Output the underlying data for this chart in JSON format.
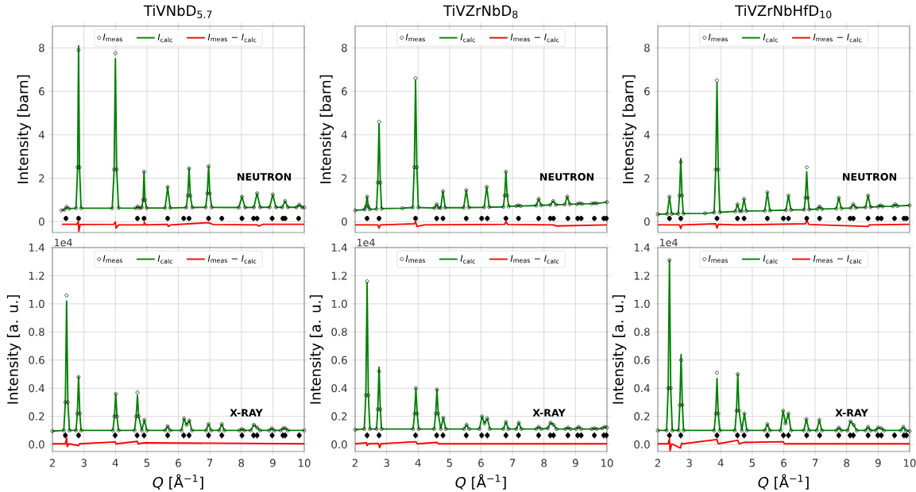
{
  "chart_data": [
    {
      "type": "line",
      "title": "TiVNbD$_{5.7}$",
      "ylabel": "Intensity [barn]",
      "xlim": [
        2,
        10
      ],
      "ylim": [
        -0.5,
        9
      ],
      "xticks": [
        2,
        3,
        4,
        5,
        6,
        7,
        8,
        9,
        10
      ],
      "yticks": [
        0,
        2,
        4,
        6,
        8
      ],
      "grid": true,
      "legend": "top",
      "tick_labels": "y",
      "annotations": [
        "NEUTRON"
      ],
      "x": [
        2.28,
        2.38,
        2.45,
        2.52,
        2.75,
        2.8,
        2.83,
        2.86,
        2.91,
        3.9,
        3.96,
        4.0,
        4.04,
        4.1,
        4.65,
        4.71,
        4.77,
        4.84,
        4.88,
        4.91,
        4.94,
        4.99,
        5.58,
        5.66,
        5.74,
        6.25,
        6.3,
        6.34,
        6.38,
        6.44,
        6.87,
        6.92,
        6.96,
        7.0,
        7.06,
        7.92,
        8.02,
        8.12,
        8.4,
        8.5,
        8.6,
        8.9,
        9.0,
        9.1,
        9.3,
        9.39,
        9.48,
        9.75,
        9.84,
        9.93,
        10
      ],
      "series": [
        {
          "name": "*I*$_{meas}$",
          "type": "scatter",
          "marker": "circle",
          "color": "#000000",
          "values": [
            0.52,
            0.55,
            0.68,
            0.6,
            0.62,
            2.5,
            7.9,
            2.5,
            0.62,
            0.62,
            2.4,
            7.75,
            2.4,
            0.63,
            0.62,
            0.7,
            0.62,
            0.65,
            1.0,
            2.3,
            1.0,
            0.63,
            0.63,
            1.6,
            0.63,
            0.65,
            1.2,
            2.45,
            1.2,
            0.65,
            0.66,
            1.3,
            2.55,
            1.3,
            0.66,
            0.65,
            1.15,
            0.65,
            0.66,
            1.3,
            0.66,
            0.66,
            1.25,
            0.66,
            0.66,
            0.95,
            0.66,
            0.66,
            0.78,
            0.66,
            0.65
          ]
        },
        {
          "name": "*I*$_{calc}$",
          "marker": "none",
          "color": "#008000",
          "values": [
            0.52,
            0.55,
            0.68,
            0.6,
            0.62,
            2.5,
            8.1,
            2.5,
            0.62,
            0.62,
            2.4,
            7.5,
            2.4,
            0.63,
            0.62,
            0.7,
            0.62,
            0.65,
            1.0,
            2.3,
            1.0,
            0.63,
            0.63,
            1.6,
            0.63,
            0.65,
            1.2,
            2.45,
            1.2,
            0.65,
            0.66,
            1.3,
            2.55,
            1.3,
            0.66,
            0.65,
            1.15,
            0.65,
            0.66,
            1.3,
            0.66,
            0.66,
            1.25,
            0.66,
            0.66,
            0.95,
            0.66,
            0.66,
            0.78,
            0.66,
            0.65
          ]
        },
        {
          "name": "*I*$_{meas}$ − *I*$_{calc}$",
          "marker": "none",
          "color": "#ff0000",
          "x": [
            2.3,
            2.78,
            2.82,
            2.84,
            2.88,
            3.95,
            4.0,
            4.02,
            4.1,
            4.9,
            4.92,
            4.96,
            5.65,
            5.68,
            5.75,
            6.34,
            6.96,
            7.1,
            8.5,
            8.55,
            8.7,
            10
          ],
          "values": [
            -0.12,
            -0.12,
            0,
            -0.45,
            -0.13,
            -0.12,
            -0.02,
            -0.3,
            -0.15,
            -0.15,
            -0.03,
            -0.15,
            -0.12,
            -0.22,
            -0.15,
            -0.1,
            -0.05,
            -0.13,
            -0.15,
            -0.2,
            -0.12,
            -0.12
          ]
        },
        {
          "type": "scatter",
          "marker": "none",
          "color": "#000000",
          "x": [
            2.43,
            2.83,
            4.7,
            4.91,
            5.66,
            6.17,
            6.34,
            6.96,
            7.38,
            8.02,
            8.39,
            8.5,
            8.98,
            9.32,
            9.39,
            9.82
          ],
          "values": [
            0.15,
            0.15,
            0.15,
            0.15,
            0.15,
            0.15,
            0.15,
            0.15,
            0.15,
            0.15,
            0.15,
            0.15,
            0.15,
            0.15,
            0.15,
            0.15
          ],
          "errors": [
            0.12,
            0.12,
            0.12,
            0.12,
            0.12,
            0.12,
            0.12,
            0.12,
            0.12,
            0.12,
            0.12,
            0.12,
            0.12,
            0.12,
            0.12,
            0.12
          ]
        }
      ]
    },
    {
      "type": "line",
      "title": "TiVZrNbD$_{8}$",
      "ylabel": "Intensity [barn]",
      "xlim": [
        2,
        10
      ],
      "ylim": [
        -0.5,
        9
      ],
      "xticks": [
        2,
        3,
        4,
        5,
        6,
        7,
        8,
        9,
        10
      ],
      "yticks": [
        0,
        2,
        4,
        6,
        8
      ],
      "grid": true,
      "legend": "top",
      "tick_labels": "y",
      "annotations": [
        "NEUTRON"
      ],
      "x": [
        2.0,
        2.3,
        2.34,
        2.38,
        2.42,
        2.46,
        2.68,
        2.72,
        2.76,
        2.8,
        2.84,
        3.5,
        3.83,
        3.88,
        3.92,
        3.96,
        4.01,
        4.52,
        4.59,
        4.65,
        4.72,
        4.79,
        4.86,
        5.45,
        5.53,
        5.61,
        6.1,
        6.18,
        6.26,
        6.71,
        6.75,
        6.79,
        6.83,
        6.88,
        7.12,
        7.19,
        7.26,
        7.75,
        7.83,
        7.91,
        8.2,
        8.29,
        8.38,
        8.66,
        8.74,
        8.82,
        9.05,
        9.13,
        9.21,
        9.52,
        9.6,
        9.68,
        10
      ],
      "series": [
        {
          "name": "*I*$_{meas}$",
          "type": "scatter",
          "marker": "circle",
          "color": "#000000",
          "values": [
            0.52,
            0.56,
            0.7,
            1.15,
            0.7,
            0.57,
            0.58,
            1.8,
            4.6,
            1.8,
            0.6,
            0.62,
            0.65,
            2.5,
            6.6,
            2.5,
            0.65,
            0.63,
            0.8,
            0.63,
            0.63,
            1.4,
            0.64,
            0.64,
            1.45,
            0.65,
            0.66,
            1.6,
            0.67,
            0.68,
            1.2,
            2.3,
            1.2,
            0.7,
            0.72,
            0.75,
            0.72,
            0.74,
            1.05,
            0.75,
            0.77,
            0.95,
            0.78,
            0.79,
            1.15,
            0.8,
            0.81,
            0.85,
            0.82,
            0.83,
            0.85,
            0.84,
            0.9
          ]
        },
        {
          "name": "*I*$_{calc}$",
          "marker": "none",
          "color": "#008000",
          "values": [
            0.52,
            0.56,
            0.7,
            1.15,
            0.7,
            0.57,
            0.58,
            1.8,
            4.5,
            1.8,
            0.6,
            0.62,
            0.65,
            2.5,
            6.5,
            2.5,
            0.65,
            0.63,
            0.8,
            0.63,
            0.63,
            1.4,
            0.64,
            0.64,
            1.45,
            0.65,
            0.66,
            1.6,
            0.67,
            0.68,
            1.2,
            2.3,
            1.2,
            0.7,
            0.72,
            0.75,
            0.72,
            0.74,
            1.05,
            0.75,
            0.77,
            0.95,
            0.78,
            0.79,
            1.15,
            0.8,
            0.81,
            0.85,
            0.82,
            0.83,
            0.85,
            0.84,
            0.9
          ]
        },
        {
          "name": "*I*$_{meas}$ − *I*$_{calc}$",
          "marker": "none",
          "color": "#ff0000",
          "x": [
            2.0,
            2.72,
            2.76,
            2.8,
            3.88,
            3.92,
            3.96,
            4.2,
            6.75,
            6.79,
            6.85,
            8.3,
            8.4,
            10
          ],
          "values": [
            -0.15,
            -0.15,
            -0.3,
            -0.15,
            -0.1,
            0,
            -0.22,
            -0.15,
            -0.12,
            0,
            -0.13,
            -0.15,
            -0.2,
            -0.15
          ]
        },
        {
          "type": "scatter",
          "marker": "none",
          "color": "#000000",
          "x": [
            2.38,
            2.76,
            3.92,
            4.59,
            4.79,
            5.53,
            6.02,
            6.2,
            6.79,
            7.19,
            7.83,
            8.2,
            8.3,
            8.76,
            9.07,
            9.18,
            9.6,
            9.9,
            9.98
          ],
          "values": [
            0.15,
            0.15,
            0.15,
            0.15,
            0.15,
            0.15,
            0.15,
            0.15,
            0.15,
            0.15,
            0.15,
            0.15,
            0.15,
            0.15,
            0.15,
            0.15,
            0.15,
            0.15,
            0.15
          ],
          "errors": [
            0.12,
            0.12,
            0.12,
            0.12,
            0.12,
            0.12,
            0.12,
            0.12,
            0.12,
            0.12,
            0.12,
            0.12,
            0.12,
            0.12,
            0.12,
            0.12,
            0.12,
            0.12,
            0.12
          ]
        }
      ]
    },
    {
      "type": "line",
      "title": "TiVZrNbHfD$_{10}$",
      "ylabel": "Intensity [barn]",
      "xlim": [
        2,
        10
      ],
      "ylim": [
        -0.5,
        9
      ],
      "xticks": [
        2,
        3,
        4,
        5,
        6,
        7,
        8,
        9,
        10
      ],
      "yticks": [
        0,
        2,
        4,
        6,
        8
      ],
      "grid": true,
      "legend": "top",
      "tick_labels": "y",
      "annotations": [
        "NEUTRON"
      ],
      "x": [
        2.0,
        2.3,
        2.37,
        2.44,
        2.65,
        2.69,
        2.73,
        2.77,
        2.81,
        3.5,
        3.79,
        3.84,
        3.88,
        3.92,
        3.97,
        4.46,
        4.53,
        4.6,
        4.67,
        4.74,
        4.81,
        5.4,
        5.48,
        5.56,
        6.07,
        6.15,
        6.23,
        6.65,
        6.69,
        6.73,
        6.77,
        6.81,
        7.07,
        7.14,
        7.21,
        7.67,
        7.75,
        7.83,
        8.13,
        8.21,
        8.29,
        8.6,
        8.68,
        8.76,
        9.0,
        9.07,
        9.14,
        9.47,
        9.54,
        9.61,
        10
      ],
      "series": [
        {
          "name": "*I*$_{meas}$",
          "type": "scatter",
          "marker": "circle",
          "color": "#000000",
          "values": [
            0.34,
            0.36,
            1.15,
            0.36,
            0.36,
            1.2,
            2.75,
            1.2,
            0.37,
            0.38,
            0.42,
            2.4,
            6.5,
            2.4,
            0.43,
            0.47,
            0.8,
            0.48,
            0.48,
            1.05,
            0.49,
            0.5,
            1.35,
            0.51,
            0.53,
            1.2,
            0.54,
            0.55,
            1.1,
            2.5,
            1.1,
            0.56,
            0.58,
            0.7,
            0.58,
            0.6,
            1.1,
            0.61,
            0.63,
            0.8,
            0.64,
            0.66,
            1.2,
            0.67,
            0.69,
            0.75,
            0.7,
            0.71,
            0.8,
            0.72,
            0.75
          ]
        },
        {
          "name": "*I*$_{calc}$",
          "marker": "none",
          "color": "#008000",
          "values": [
            0.34,
            0.36,
            1.15,
            0.36,
            0.36,
            1.2,
            2.9,
            1.2,
            0.37,
            0.38,
            0.42,
            2.4,
            6.4,
            2.4,
            0.43,
            0.47,
            0.8,
            0.48,
            0.48,
            1.05,
            0.49,
            0.5,
            1.35,
            0.51,
            0.53,
            1.2,
            0.54,
            0.55,
            1.1,
            2.3,
            1.1,
            0.56,
            0.58,
            0.7,
            0.58,
            0.6,
            1.1,
            0.61,
            0.63,
            0.8,
            0.64,
            0.66,
            1.2,
            0.67,
            0.69,
            0.75,
            0.7,
            0.71,
            0.8,
            0.72,
            0.75
          ]
        },
        {
          "name": "*I*$_{meas}$ − *I*$_{calc}$",
          "marker": "none",
          "color": "#ff0000",
          "x": [
            2.0,
            2.69,
            2.73,
            2.77,
            3.84,
            3.88,
            3.92,
            4.5,
            6.69,
            6.73,
            6.8,
            8.68,
            8.72,
            10
          ],
          "values": [
            -0.15,
            -0.15,
            -0.32,
            -0.15,
            -0.1,
            -0.3,
            -0.12,
            -0.15,
            -0.1,
            0.05,
            -0.13,
            -0.22,
            -0.15,
            -0.12
          ]
        },
        {
          "type": "scatter",
          "marker": "none",
          "color": "#000000",
          "x": [
            2.37,
            2.73,
            3.88,
            4.53,
            4.74,
            5.48,
            5.99,
            6.15,
            6.73,
            7.14,
            7.75,
            8.11,
            8.21,
            8.68,
            8.99,
            9.1,
            9.52,
            9.82,
            9.9
          ],
          "values": [
            0.15,
            0.15,
            0.15,
            0.15,
            0.15,
            0.15,
            0.15,
            0.15,
            0.15,
            0.15,
            0.15,
            0.15,
            0.15,
            0.15,
            0.15,
            0.15,
            0.15,
            0.15,
            0.15
          ],
          "errors": [
            0.12,
            0.12,
            0.12,
            0.12,
            0.12,
            0.12,
            0.12,
            0.12,
            0.12,
            0.12,
            0.12,
            0.12,
            0.12,
            0.12,
            0.12,
            0.12,
            0.12,
            0.12,
            0.12
          ]
        }
      ]
    },
    {
      "type": "line",
      "xlabel": "*Q* [Å$^{−1}$]",
      "ylabel": "Intensity [a. u.]",
      "xlim": [
        2,
        10
      ],
      "ylim": [
        -0.05,
        1.4
      ],
      "xticks": [
        2,
        3,
        4,
        5,
        6,
        7,
        8,
        9,
        10
      ],
      "yticks": [
        {
          "value": 0,
          "label": "0.0"
        },
        {
          "value": 0.2,
          "label": "0.2"
        },
        {
          "value": 0.4,
          "label": "0.4"
        },
        {
          "value": 0.6,
          "label": "0.6"
        },
        {
          "value": 0.8,
          "label": "0.8"
        },
        {
          "value": 1.0,
          "label": "1.0"
        },
        {
          "value": 1.2,
          "label": "1.2"
        },
        {
          "value": 1.4,
          "label": "1.4"
        }
      ],
      "grid": true,
      "legend": "top",
      "annotations": [
        "X-RAY",
        "1e4"
      ],
      "x": [
        2.0,
        2.36,
        2.41,
        2.45,
        2.49,
        2.54,
        2.75,
        2.79,
        2.83,
        2.87,
        2.91,
        3.92,
        3.97,
        4.01,
        4.05,
        4.1,
        4.61,
        4.66,
        4.7,
        4.74,
        4.84,
        4.92,
        5.0,
        5.58,
        5.66,
        5.74,
        6.1,
        6.18,
        6.26,
        6.35,
        6.43,
        6.88,
        6.96,
        7.04,
        7.3,
        7.38,
        7.46,
        7.94,
        8.02,
        8.1,
        8.3,
        8.4,
        8.5,
        8.6,
        8.89,
        8.97,
        9.05,
        9.25,
        9.33,
        9.4,
        9.48,
        10
      ],
      "series": [
        {
          "name": "*I*$_{meas}$",
          "type": "scatter",
          "marker": "circle",
          "color": "#000000",
          "values": [
            0.095,
            0.1,
            0.3,
            1.06,
            0.3,
            0.1,
            0.1,
            0.22,
            0.48,
            0.22,
            0.1,
            0.1,
            0.2,
            0.36,
            0.2,
            0.1,
            0.1,
            0.2,
            0.37,
            0.2,
            0.1,
            0.175,
            0.1,
            0.1,
            0.13,
            0.1,
            0.1,
            0.185,
            0.14,
            0.17,
            0.1,
            0.1,
            0.145,
            0.1,
            0.1,
            0.145,
            0.1,
            0.1,
            0.11,
            0.1,
            0.1,
            0.14,
            0.12,
            0.1,
            0.1,
            0.115,
            0.1,
            0.1,
            0.115,
            0.115,
            0.1,
            0.1
          ]
        },
        {
          "name": "*I*$_{calc}$",
          "marker": "none",
          "color": "#008000",
          "values": [
            0.095,
            0.1,
            0.3,
            1.02,
            0.3,
            0.1,
            0.1,
            0.22,
            0.48,
            0.22,
            0.1,
            0.1,
            0.2,
            0.36,
            0.2,
            0.1,
            0.1,
            0.2,
            0.35,
            0.2,
            0.1,
            0.175,
            0.1,
            0.1,
            0.13,
            0.1,
            0.1,
            0.185,
            0.14,
            0.17,
            0.1,
            0.1,
            0.145,
            0.1,
            0.1,
            0.145,
            0.1,
            0.1,
            0.11,
            0.1,
            0.1,
            0.14,
            0.12,
            0.1,
            0.1,
            0.115,
            0.1,
            0.1,
            0.115,
            0.115,
            0.1,
            0.1
          ]
        },
        {
          "name": "*I*$_{meas}$ − *I*$_{calc}$",
          "marker": "none",
          "color": "#ff0000",
          "x": [
            2.0,
            2.41,
            2.45,
            2.47,
            2.52,
            2.83,
            2.86,
            4.0,
            4.02,
            4.7,
            4.72,
            4.92,
            10
          ],
          "values": [
            0.005,
            0.005,
            0.045,
            -0.015,
            0.005,
            -0.008,
            0.005,
            0.018,
            0.005,
            0.022,
            0.005,
            0.012,
            0.005
          ]
        },
        {
          "type": "scatter",
          "marker": "none",
          "color": "#000000",
          "x": [
            2.41,
            2.83,
            3.99,
            4.69,
            4.91,
            5.66,
            6.17,
            6.34,
            6.96,
            7.38,
            8.02,
            8.39,
            8.5,
            8.98,
            9.32,
            9.39,
            9.84
          ],
          "values": [
            0.065,
            0.065,
            0.065,
            0.065,
            0.065,
            0.065,
            0.065,
            0.065,
            0.065,
            0.065,
            0.065,
            0.065,
            0.065,
            0.065,
            0.065,
            0.065,
            0.065
          ],
          "errors": [
            0.022,
            0.022,
            0.022,
            0.022,
            0.022,
            0.022,
            0.022,
            0.022,
            0.022,
            0.022,
            0.022,
            0.022,
            0.022,
            0.022,
            0.022,
            0.022,
            0.022
          ]
        }
      ]
    },
    {
      "type": "line",
      "xlabel": "*Q* [Å$^{−1}$]",
      "ylabel": "Intensity [a. u.]",
      "xlim": [
        2,
        10
      ],
      "ylim": [
        -0.05,
        1.4
      ],
      "xticks": [
        2,
        3,
        4,
        5,
        6,
        7,
        8,
        9,
        10
      ],
      "yticks": [
        {
          "value": 0,
          "label": "0.0"
        },
        {
          "value": 0.2,
          "label": "0.2"
        },
        {
          "value": 0.4,
          "label": "0.4"
        },
        {
          "value": 0.6,
          "label": "0.6"
        },
        {
          "value": 0.8,
          "label": "0.8"
        },
        {
          "value": 1.0,
          "label": "1.0"
        },
        {
          "value": 1.2,
          "label": "1.2"
        },
        {
          "value": 1.4,
          "label": "1.4"
        }
      ],
      "grid": true,
      "legend": "top",
      "annotations": [
        "X-RAY",
        "1e4"
      ],
      "x": [
        2.0,
        2.29,
        2.34,
        2.38,
        2.42,
        2.47,
        2.68,
        2.72,
        2.76,
        2.8,
        2.84,
        3.84,
        3.89,
        3.93,
        3.97,
        4.02,
        4.51,
        4.56,
        4.6,
        4.64,
        4.72,
        4.8,
        4.88,
        5.46,
        5.54,
        5.62,
        5.95,
        6.03,
        6.11,
        6.2,
        6.28,
        6.71,
        6.79,
        6.87,
        7.12,
        7.2,
        7.28,
        7.75,
        7.83,
        7.91,
        8.12,
        8.21,
        8.3,
        8.4,
        8.68,
        8.76,
        8.84,
        9.02,
        9.1,
        9.18,
        9.52,
        9.6,
        9.68,
        9.85,
        9.93,
        10
      ],
      "series": [
        {
          "name": "*I*$_{meas}$",
          "type": "scatter",
          "marker": "circle",
          "color": "#000000",
          "values": [
            0.105,
            0.11,
            0.35,
            1.16,
            0.35,
            0.11,
            0.11,
            0.25,
            0.52,
            0.25,
            0.11,
            0.11,
            0.22,
            0.4,
            0.22,
            0.11,
            0.11,
            0.22,
            0.39,
            0.22,
            0.11,
            0.19,
            0.11,
            0.11,
            0.14,
            0.11,
            0.11,
            0.2,
            0.15,
            0.185,
            0.11,
            0.11,
            0.16,
            0.11,
            0.11,
            0.155,
            0.11,
            0.11,
            0.125,
            0.11,
            0.115,
            0.155,
            0.14,
            0.11,
            0.11,
            0.12,
            0.11,
            0.11,
            0.125,
            0.11,
            0.11,
            0.115,
            0.11,
            0.115,
            0.125,
            0.12
          ]
        },
        {
          "name": "*I*$_{calc}$",
          "marker": "none",
          "color": "#008000",
          "values": [
            0.105,
            0.11,
            0.35,
            1.15,
            0.35,
            0.11,
            0.11,
            0.25,
            0.55,
            0.25,
            0.11,
            0.11,
            0.22,
            0.4,
            0.22,
            0.11,
            0.11,
            0.22,
            0.39,
            0.22,
            0.11,
            0.19,
            0.11,
            0.11,
            0.14,
            0.11,
            0.11,
            0.2,
            0.15,
            0.185,
            0.11,
            0.11,
            0.16,
            0.11,
            0.11,
            0.155,
            0.11,
            0.11,
            0.125,
            0.11,
            0.115,
            0.155,
            0.14,
            0.11,
            0.11,
            0.12,
            0.11,
            0.11,
            0.125,
            0.11,
            0.11,
            0.115,
            0.11,
            0.115,
            0.125,
            0.12
          ]
        },
        {
          "name": "*I*$_{meas}$ − *I*$_{calc}$",
          "marker": "none",
          "color": "#ff0000",
          "x": [
            2.0,
            2.36,
            2.38,
            2.42,
            2.74,
            2.78,
            2.82,
            3.93,
            3.97,
            4.6,
            4.65,
            10
          ],
          "values": [
            0.005,
            0.012,
            -0.008,
            0.005,
            0.008,
            -0.022,
            0.005,
            0.02,
            0.005,
            0.015,
            0.005,
            0.005
          ]
        },
        {
          "type": "scatter",
          "marker": "none",
          "color": "#000000",
          "x": [
            2.38,
            2.76,
            3.92,
            4.59,
            4.79,
            5.53,
            6.02,
            6.2,
            6.79,
            7.19,
            7.83,
            8.2,
            8.3,
            8.76,
            9.07,
            9.18,
            9.6,
            9.9,
            9.98
          ],
          "values": [
            0.065,
            0.065,
            0.065,
            0.065,
            0.065,
            0.065,
            0.065,
            0.065,
            0.065,
            0.065,
            0.065,
            0.065,
            0.065,
            0.065,
            0.065,
            0.065,
            0.065,
            0.065,
            0.065
          ],
          "errors": [
            0.022,
            0.022,
            0.022,
            0.022,
            0.022,
            0.022,
            0.022,
            0.022,
            0.022,
            0.022,
            0.022,
            0.022,
            0.022,
            0.022,
            0.022,
            0.022,
            0.022,
            0.022,
            0.022
          ]
        }
      ]
    },
    {
      "type": "line",
      "xlabel": "*Q* [Å$^{−1}$]",
      "ylabel": "Intensity [a. u.]",
      "xlim": [
        2,
        10
      ],
      "ylim": [
        -0.05,
        1.4
      ],
      "xticks": [
        2,
        3,
        4,
        5,
        6,
        7,
        8,
        9,
        10
      ],
      "yticks": [
        {
          "value": 0,
          "label": "0.0"
        },
        {
          "value": 0.2,
          "label": "0.2"
        },
        {
          "value": 0.4,
          "label": "0.4"
        },
        {
          "value": 0.6,
          "label": "0.6"
        },
        {
          "value": 0.8,
          "label": "0.8"
        },
        {
          "value": 1.0,
          "label": "1.0"
        },
        {
          "value": 1.2,
          "label": "1.2"
        },
        {
          "value": 1.4,
          "label": "1.4"
        }
      ],
      "grid": true,
      "legend": "top",
      "annotations": [
        "X-RAY",
        "1e4"
      ],
      "x": [
        2.0,
        2.28,
        2.33,
        2.37,
        2.41,
        2.46,
        2.66,
        2.7,
        2.74,
        2.78,
        2.82,
        3.79,
        3.84,
        3.88,
        3.92,
        3.97,
        4.45,
        4.5,
        4.54,
        4.58,
        4.67,
        4.75,
        4.83,
        5.4,
        5.48,
        5.56,
        5.9,
        5.98,
        6.06,
        6.15,
        6.23,
        6.64,
        6.72,
        6.8,
        7.05,
        7.13,
        7.21,
        7.67,
        7.75,
        7.83,
        8.03,
        8.12,
        8.22,
        8.32,
        8.6,
        8.68,
        8.76,
        8.92,
        9.0,
        9.1,
        9.18,
        9.72,
        9.8,
        9.88,
        10
      ],
      "series": [
        {
          "name": "*I*$_{meas}$",
          "type": "scatter",
          "marker": "circle",
          "color": "#000000",
          "values": [
            0.1,
            0.1,
            0.4,
            1.31,
            0.4,
            0.1,
            0.1,
            0.28,
            0.6,
            0.28,
            0.1,
            0.1,
            0.22,
            0.51,
            0.22,
            0.1,
            0.1,
            0.24,
            0.5,
            0.24,
            0.1,
            0.22,
            0.1,
            0.1,
            0.145,
            0.1,
            0.1,
            0.24,
            0.15,
            0.22,
            0.1,
            0.1,
            0.18,
            0.1,
            0.1,
            0.175,
            0.1,
            0.1,
            0.12,
            0.1,
            0.1,
            0.165,
            0.14,
            0.1,
            0.1,
            0.125,
            0.1,
            0.1,
            0.12,
            0.115,
            0.1,
            0.1,
            0.125,
            0.1,
            0.095
          ]
        },
        {
          "name": "*I*$_{calc}$",
          "marker": "none",
          "color": "#008000",
          "values": [
            0.1,
            0.1,
            0.4,
            1.31,
            0.4,
            0.1,
            0.1,
            0.28,
            0.64,
            0.28,
            0.1,
            0.1,
            0.22,
            0.47,
            0.22,
            0.1,
            0.1,
            0.24,
            0.5,
            0.24,
            0.1,
            0.22,
            0.1,
            0.1,
            0.145,
            0.1,
            0.1,
            0.24,
            0.15,
            0.22,
            0.1,
            0.1,
            0.18,
            0.1,
            0.1,
            0.175,
            0.1,
            0.1,
            0.12,
            0.1,
            0.1,
            0.165,
            0.14,
            0.1,
            0.1,
            0.125,
            0.1,
            0.1,
            0.12,
            0.115,
            0.1,
            0.1,
            0.125,
            0.1,
            0.095
          ]
        },
        {
          "name": "*I*$_{meas}$ − *I*$_{calc}$",
          "marker": "none",
          "color": "#ff0000",
          "x": [
            2.0,
            2.33,
            2.37,
            2.39,
            2.44,
            2.72,
            2.76,
            2.8,
            3.88,
            3.92,
            4.54,
            4.58,
            4.75,
            5.98,
            6.02,
            10
          ],
          "values": [
            0.005,
            0.005,
            0.04,
            -0.045,
            0.005,
            -0.025,
            0.01,
            0.005,
            0.035,
            0.005,
            0.03,
            0.005,
            0.015,
            0.02,
            0.005,
            0.005
          ]
        },
        {
          "type": "scatter",
          "marker": "none",
          "color": "#000000",
          "x": [
            2.37,
            2.73,
            3.88,
            4.53,
            4.74,
            5.48,
            5.99,
            6.15,
            6.73,
            7.14,
            7.75,
            8.11,
            8.21,
            8.68,
            8.99,
            9.1,
            9.52,
            9.82,
            9.9
          ],
          "values": [
            0.065,
            0.065,
            0.065,
            0.065,
            0.065,
            0.065,
            0.065,
            0.065,
            0.065,
            0.065,
            0.065,
            0.065,
            0.065,
            0.065,
            0.065,
            0.065,
            0.065,
            0.065,
            0.065
          ],
          "errors": [
            0.022,
            0.022,
            0.022,
            0.022,
            0.022,
            0.022,
            0.022,
            0.022,
            0.022,
            0.022,
            0.022,
            0.022,
            0.022,
            0.022,
            0.022,
            0.022,
            0.022,
            0.022,
            0.022
          ]
        }
      ]
    }
  ]
}
